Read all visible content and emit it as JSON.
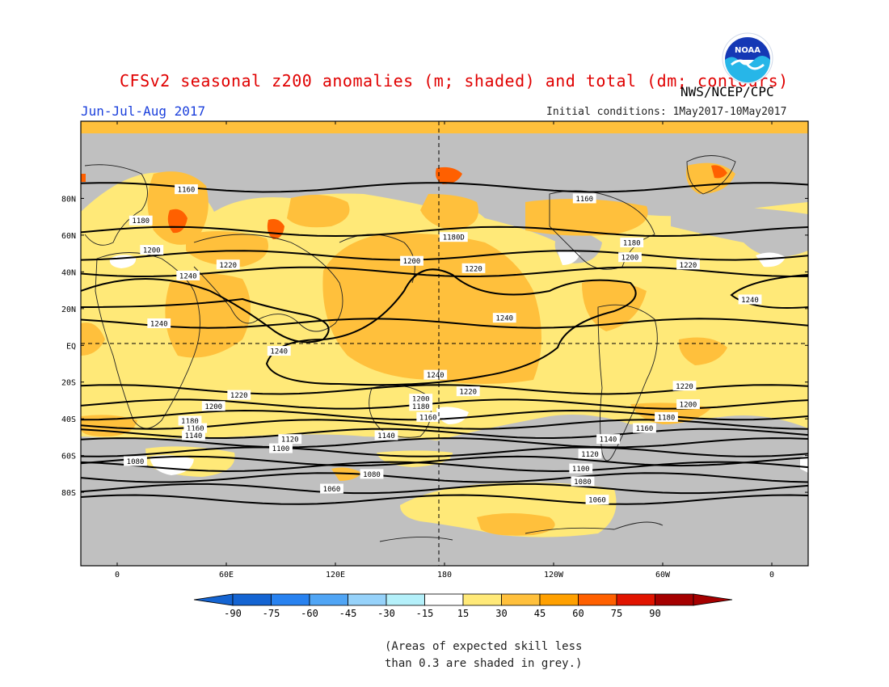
{
  "title": "CFSv2 seasonal z200 anomalies (m; shaded) and total (dm; contours)",
  "agency": "NWS/NCEP/CPC",
  "season": "Jun-Jul-Aug 2017",
  "initial_conditions": "Initial conditions: 1May2017-10May2017",
  "logo_text": "NOAA",
  "note_line1": "(Areas of expected skill less",
  "note_line2": "than 0.3 are shaded in grey.)",
  "lat_labels": [
    "80N",
    "60N",
    "40N",
    "20N",
    "EQ",
    "20S",
    "40S",
    "60S",
    "80S"
  ],
  "lat_values": [
    80,
    60,
    40,
    20,
    0,
    -20,
    -40,
    -60,
    -80
  ],
  "lon_labels": [
    "0",
    "60E",
    "120E",
    "180",
    "120W",
    "60W",
    "0"
  ],
  "lon_values": [
    0,
    60,
    120,
    180,
    240,
    300,
    360
  ],
  "colorbar": {
    "labels": [
      "-90",
      "-75",
      "-60",
      "-45",
      "-30",
      "-15",
      "15",
      "30",
      "45",
      "60",
      "75",
      "90"
    ],
    "colors": [
      "#1464d2",
      "#2882f0",
      "#50a5f5",
      "#96d2fa",
      "#b4f0fa",
      "#ffffff",
      "#ffe978",
      "#ffc03c",
      "#ffa000",
      "#ff6000",
      "#e11400",
      "#a50000"
    ],
    "under_color": "#1464d2",
    "over_color": "#a50000"
  },
  "colors": {
    "grey": "#c0c0c0",
    "ocean_default": "#ffe978",
    "title": "#e00000",
    "season": "#1a3fdc"
  },
  "contours": [
    {
      "label": "1060",
      "lat": -78
    },
    {
      "label": "1060",
      "lat": -84
    },
    {
      "label": "1080",
      "lat": -66
    },
    {
      "label": "1080",
      "lat": -72
    },
    {
      "label": "1100",
      "lat": -58
    },
    {
      "label": "1100",
      "lat": -63
    },
    {
      "label": "1120",
      "lat": -53
    },
    {
      "label": "1140",
      "lat": -48
    },
    {
      "label": "1160",
      "lat": -43
    },
    {
      "label": "1180",
      "lat": -38
    },
    {
      "label": "1200",
      "lat": -32
    },
    {
      "label": "1220",
      "lat": -24
    },
    {
      "label": "1240",
      "lat": 12
    },
    {
      "label": "1220",
      "lat": 40
    },
    {
      "label": "1200",
      "lat": 49
    },
    {
      "label": "1180",
      "lat": 62
    },
    {
      "label": "1160",
      "lat": 86
    }
  ],
  "contour_labels": [
    {
      "t": "1160",
      "lon": 38,
      "lat": 85
    },
    {
      "t": "1160",
      "lon": 257,
      "lat": 80
    },
    {
      "t": "1180",
      "lon": 13,
      "lat": 68
    },
    {
      "t": "1180D",
      "lon": 185,
      "lat": 59
    },
    {
      "t": "1180",
      "lon": 283,
      "lat": 56
    },
    {
      "t": "1200",
      "lon": 19,
      "lat": 52
    },
    {
      "t": "1200",
      "lon": 162,
      "lat": 46
    },
    {
      "t": "1200",
      "lon": 282,
      "lat": 48
    },
    {
      "t": "1220",
      "lon": 61,
      "lat": 44
    },
    {
      "t": "1220",
      "lon": 196,
      "lat": 42
    },
    {
      "t": "1220",
      "lon": 314,
      "lat": 44
    },
    {
      "t": "1240",
      "lon": 39,
      "lat": 38
    },
    {
      "t": "1240",
      "lon": 213,
      "lat": 15
    },
    {
      "t": "1240",
      "lon": 348,
      "lat": 25
    },
    {
      "t": "1240",
      "lon": 23,
      "lat": 12
    },
    {
      "t": "1240",
      "lon": 89,
      "lat": -3
    },
    {
      "t": "1240",
      "lon": 175,
      "lat": -16
    },
    {
      "t": "1220",
      "lon": 67,
      "lat": -27
    },
    {
      "t": "1220",
      "lon": 193,
      "lat": -25
    },
    {
      "t": "1220",
      "lon": 312,
      "lat": -22
    },
    {
      "t": "1200",
      "lon": 53,
      "lat": -33
    },
    {
      "t": "1200",
      "lon": 167,
      "lat": -29
    },
    {
      "t": "1200",
      "lon": 314,
      "lat": -32
    },
    {
      "t": "1180",
      "lon": 40,
      "lat": -41
    },
    {
      "t": "1180",
      "lon": 167,
      "lat": -33
    },
    {
      "t": "1180",
      "lon": 302,
      "lat": -39
    },
    {
      "t": "1160",
      "lon": 43,
      "lat": -45
    },
    {
      "t": "1160",
      "lon": 171,
      "lat": -39
    },
    {
      "t": "1160",
      "lon": 290,
      "lat": -45
    },
    {
      "t": "1140",
      "lon": 42,
      "lat": -49
    },
    {
      "t": "1140",
      "lon": 148,
      "lat": -49
    },
    {
      "t": "1140",
      "lon": 270,
      "lat": -51
    },
    {
      "t": "1120",
      "lon": 95,
      "lat": -51
    },
    {
      "t": "1120",
      "lon": 260,
      "lat": -59
    },
    {
      "t": "1100",
      "lon": 90,
      "lat": -56
    },
    {
      "t": "1100",
      "lon": 255,
      "lat": -67
    },
    {
      "t": "1080",
      "lon": 10,
      "lat": -63
    },
    {
      "t": "1080",
      "lon": 140,
      "lat": -70
    },
    {
      "t": "1080",
      "lon": 256,
      "lat": -74
    },
    {
      "t": "1060",
      "lon": 118,
      "lat": -78
    },
    {
      "t": "1060",
      "lon": 264,
      "lat": -84
    }
  ]
}
